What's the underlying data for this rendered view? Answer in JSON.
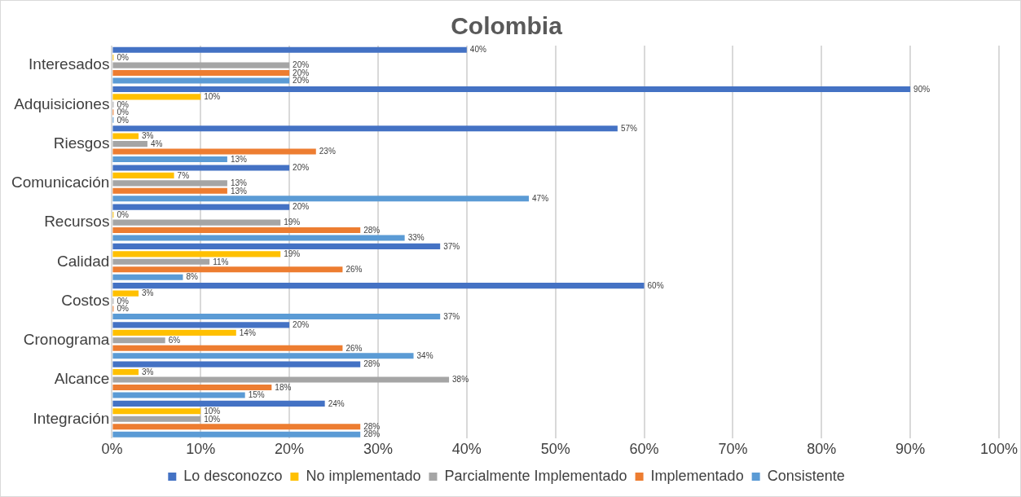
{
  "chart_data": {
    "type": "bar",
    "orientation": "horizontal",
    "title": "Colombia",
    "categories": [
      "Interesados",
      "Adquisiciones",
      "Riesgos",
      "Comunicación",
      "Recursos",
      "Calidad",
      "Costos",
      "Cronograma",
      "Alcance",
      "Integración"
    ],
    "series": [
      {
        "name": "Lo desconozco",
        "color": "#4472c4",
        "values": [
          40,
          90,
          57,
          20,
          20,
          37,
          60,
          20,
          28,
          24
        ],
        "value_labels": [
          "40%",
          "90%",
          "57%",
          "20%",
          "20%",
          "37%",
          "60%",
          "20%",
          "28%",
          "24%"
        ]
      },
      {
        "name": "No implementado",
        "color": "#ffc000",
        "values": [
          0,
          10,
          3,
          7,
          0,
          19,
          3,
          14,
          3,
          10
        ],
        "value_labels": [
          "0%",
          "10%",
          "3%",
          "7%",
          "0%",
          "19%",
          "3%",
          "14%",
          "3%",
          "10%"
        ]
      },
      {
        "name": "Parcialmente Implementado",
        "color": "#a5a5a5",
        "values": [
          20,
          0,
          4,
          13,
          19,
          11,
          0,
          6,
          38,
          10
        ],
        "value_labels": [
          "20%",
          "0%",
          "4%",
          "13%",
          "19%",
          "11%",
          "0%",
          "6%",
          "38%",
          "10%"
        ]
      },
      {
        "name": "Implementado",
        "color": "#ed7d31",
        "values": [
          20,
          0,
          23,
          13,
          28,
          26,
          0,
          26,
          18,
          28
        ],
        "value_labels": [
          "20%",
          "0%",
          "23%",
          "13%",
          "28%",
          "26%",
          "0%",
          "26%",
          "18%",
          "28%"
        ]
      },
      {
        "name": "Consistente",
        "color": "#5b9bd5",
        "values": [
          20,
          0,
          13,
          47,
          33,
          8,
          37,
          34,
          15,
          28
        ],
        "value_labels": [
          "20%",
          "0%",
          "13%",
          "47%",
          "33%",
          "8%",
          "37%",
          "34%",
          "15%",
          "28%"
        ]
      }
    ],
    "xlim": [
      0,
      100
    ],
    "xticks": [
      {
        "value": 0,
        "label": "0%"
      },
      {
        "value": 10,
        "label": "10%"
      },
      {
        "value": 20,
        "label": "20%"
      },
      {
        "value": 30,
        "label": "30%"
      },
      {
        "value": 40,
        "label": "40%"
      },
      {
        "value": 50,
        "label": "50%"
      },
      {
        "value": 60,
        "label": "60%"
      },
      {
        "value": 70,
        "label": "70%"
      },
      {
        "value": 80,
        "label": "80%"
      },
      {
        "value": 90,
        "label": "90%"
      },
      {
        "value": 100,
        "label": "100%"
      }
    ],
    "grid": "x",
    "legend": "bottom"
  }
}
